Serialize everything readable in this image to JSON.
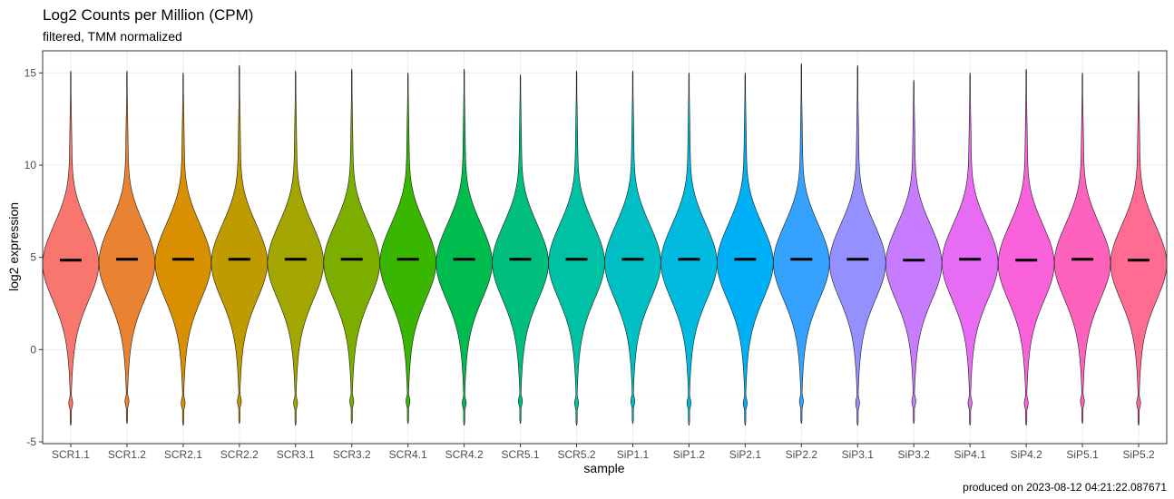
{
  "chart_data": {
    "type": "violin",
    "title": "Log2 Counts per Million (CPM)",
    "subtitle": "filtered, TMM normalized",
    "xlabel": "sample",
    "ylabel": "log2 expression",
    "caption": "produced on 2023-08-12 04:21:22.087671",
    "ylim": [
      -5.1,
      16.2
    ],
    "yticks": [
      -5,
      0,
      5,
      10,
      15
    ],
    "grid": true,
    "legend": "none",
    "categories": [
      "SCR1.1",
      "SCR1.2",
      "SCR2.1",
      "SCR2.2",
      "SCR3.1",
      "SCR3.2",
      "SCR4.1",
      "SCR4.2",
      "SCR5.1",
      "SCR5.2",
      "SiP1.1",
      "SiP1.2",
      "SiP2.1",
      "SiP2.2",
      "SiP3.1",
      "SiP3.2",
      "SiP4.1",
      "SiP4.2",
      "SiP5.1",
      "SiP5.2"
    ],
    "colors": [
      "#F8766D",
      "#EA8331",
      "#D89000",
      "#C09B00",
      "#A3A500",
      "#7CAE00",
      "#39B600",
      "#00BB4E",
      "#00BF7D",
      "#00C1A3",
      "#00BFC4",
      "#00BAE0",
      "#00B0F6",
      "#35A2FF",
      "#9590FF",
      "#C77CFF",
      "#E76BF3",
      "#FA62DB",
      "#FF62BC",
      "#FF6C91"
    ],
    "medians": [
      4.85,
      4.9,
      4.9,
      4.9,
      4.9,
      4.9,
      4.9,
      4.9,
      4.9,
      4.9,
      4.9,
      4.9,
      4.9,
      4.9,
      4.9,
      4.85,
      4.9,
      4.85,
      4.9,
      4.85
    ],
    "maxima": [
      15.1,
      15.1,
      15.0,
      15.4,
      15.1,
      15.2,
      15.0,
      15.2,
      14.9,
      15.1,
      15.1,
      15.0,
      15.0,
      15.5,
      15.4,
      14.6,
      15.0,
      15.2,
      15.0,
      15.1
    ],
    "minima": [
      -4.1,
      -4.0,
      -4.1,
      -4.0,
      -4.1,
      -4.0,
      -4.0,
      -4.1,
      -4.0,
      -4.1,
      -4.0,
      -4.1,
      -4.1,
      -4.0,
      -4.1,
      -4.0,
      -4.1,
      -4.1,
      -4.0,
      -4.1
    ]
  }
}
